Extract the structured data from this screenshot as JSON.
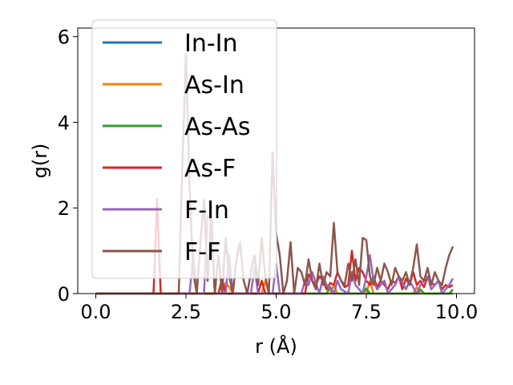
{
  "chart_data": {
    "type": "line",
    "xlabel": "r (Å)",
    "ylabel": "g(r)",
    "xlim": [
      -0.5,
      10.5
    ],
    "ylim": [
      0,
      6.2
    ],
    "x_ticks": [
      0.0,
      2.5,
      5.0,
      7.5,
      10.0
    ],
    "x_tick_labels": [
      "0.0",
      "2.5",
      "5.0",
      "7.5",
      "10.0"
    ],
    "y_ticks": [
      0,
      2,
      4,
      6
    ],
    "y_tick_labels": [
      "0",
      "2",
      "4",
      "6"
    ],
    "grid": false,
    "legend": "top-left",
    "series": [
      {
        "name": "In-In",
        "color": "#1f77b4",
        "x": [
          0,
          1.0,
          2.0,
          3.0,
          4.0,
          5.0,
          6.0,
          7.0,
          8.0,
          9.0,
          9.9
        ],
        "y": [
          0,
          0,
          0,
          0,
          0,
          0,
          0,
          0,
          0,
          0,
          0
        ]
      },
      {
        "name": "As-In",
        "color": "#ff7f0e",
        "x": [
          0,
          3.5,
          3.6,
          3.7,
          3.8,
          4.6,
          4.7,
          4.8,
          6.5,
          6.6,
          6.7,
          7.5,
          7.6,
          7.7,
          8.8,
          8.9,
          9.0,
          9.9
        ],
        "y": [
          0,
          0,
          0.25,
          0.15,
          0,
          0,
          0.3,
          0,
          0,
          0.2,
          0,
          0,
          0.3,
          0,
          0,
          0.15,
          0,
          0
        ]
      },
      {
        "name": "As-As",
        "color": "#2ca02c",
        "x": [
          0,
          6.4,
          6.5,
          6.6,
          7.4,
          7.5,
          7.6,
          8.9,
          9.0,
          9.1,
          9.8,
          9.9
        ],
        "y": [
          0,
          0,
          0.15,
          0,
          0,
          0.12,
          0,
          0,
          0.1,
          0,
          0,
          0.1
        ]
      },
      {
        "name": "As-F",
        "color": "#d62728",
        "x": [
          0,
          1.6,
          1.7,
          1.8,
          3.4,
          3.5,
          3.6,
          4.5,
          4.6,
          4.7,
          5.8,
          5.9,
          6.0,
          6.1,
          6.2,
          6.3,
          6.4,
          6.5,
          6.6,
          6.7,
          6.8,
          6.9,
          7.0,
          7.1,
          7.2,
          7.3,
          7.4,
          7.5,
          7.6,
          7.7,
          7.8,
          7.9,
          8.0,
          8.1,
          8.2,
          8.3,
          8.4,
          8.5,
          8.6,
          8.7,
          8.8,
          8.9,
          9.0,
          9.1,
          9.2,
          9.3,
          9.4,
          9.5,
          9.6,
          9.7,
          9.8,
          9.9
        ],
        "y": [
          0,
          0,
          2.2,
          0,
          0,
          0.35,
          0,
          0,
          0.3,
          0,
          0,
          0.45,
          0.3,
          0.2,
          0.4,
          0.3,
          0.1,
          0.25,
          0.2,
          0.5,
          0.3,
          0.15,
          0.2,
          1.0,
          0.3,
          0.6,
          0.5,
          0.3,
          0.2,
          0.4,
          0.15,
          0.3,
          0.2,
          0.1,
          0.3,
          0.25,
          0.4,
          0.1,
          0.35,
          0.2,
          0.5,
          0.2,
          0.3,
          0.15,
          0.4,
          0.25,
          0.2,
          0.3,
          0.1,
          0.2,
          0.15,
          0.2
        ]
      },
      {
        "name": "F-In",
        "color": "#9467bd",
        "x": [
          0,
          2.6,
          2.7,
          2.8,
          3.0,
          3.1,
          3.2,
          3.3,
          3.6,
          3.7,
          3.8,
          4.3,
          4.4,
          4.5,
          4.9,
          5.0,
          5.1,
          5.7,
          5.8,
          5.9,
          6.0,
          6.2,
          6.3,
          6.4,
          6.6,
          6.7,
          6.8,
          7.0,
          7.1,
          7.2,
          7.4,
          7.5,
          7.6,
          7.7,
          7.8,
          8.0,
          8.1,
          8.3,
          8.4,
          8.6,
          8.7,
          8.9,
          9.0,
          9.2,
          9.3,
          9.5,
          9.6,
          9.8,
          9.9
        ],
        "y": [
          0,
          0,
          0.9,
          0,
          0,
          1.8,
          1.7,
          0,
          0,
          0.9,
          0,
          0,
          0.6,
          0,
          0,
          0.7,
          0,
          0,
          0.3,
          0.2,
          0.5,
          0,
          0.4,
          0.2,
          0,
          0.3,
          0.1,
          0,
          0.5,
          0.2,
          0,
          0.4,
          0.9,
          0.3,
          0.1,
          0.3,
          0,
          0.2,
          0.4,
          0.1,
          0.3,
          0,
          0.2,
          0.4,
          0.1,
          0.3,
          0,
          0.2,
          0.35
        ]
      },
      {
        "name": "F-F",
        "color": "#8c564b",
        "x": [
          0,
          2.3,
          2.4,
          2.5,
          2.6,
          2.7,
          2.8,
          2.9,
          3.0,
          3.1,
          3.2,
          3.3,
          3.4,
          3.5,
          3.6,
          3.7,
          3.8,
          3.9,
          4.0,
          4.1,
          4.2,
          4.3,
          4.4,
          4.5,
          4.6,
          4.7,
          4.8,
          4.9,
          5.0,
          5.1,
          5.2,
          5.3,
          5.4,
          5.5,
          5.6,
          5.7,
          5.8,
          5.9,
          6.0,
          6.1,
          6.2,
          6.3,
          6.4,
          6.5,
          6.6,
          6.7,
          6.8,
          6.9,
          7.0,
          7.1,
          7.2,
          7.3,
          7.4,
          7.5,
          7.6,
          7.7,
          7.8,
          7.9,
          8.0,
          8.1,
          8.2,
          8.3,
          8.4,
          8.5,
          8.6,
          8.7,
          8.8,
          8.9,
          9.0,
          9.1,
          9.2,
          9.3,
          9.4,
          9.5,
          9.6,
          9.7,
          9.8,
          9.9
        ],
        "y": [
          0,
          0,
          3.0,
          5.6,
          2.5,
          0.5,
          0,
          1.2,
          2.2,
          0.3,
          1.8,
          0,
          0.9,
          0,
          1.3,
          0.4,
          0,
          0.8,
          1.2,
          0.3,
          0,
          0.5,
          0.9,
          0.2,
          1.3,
          0.4,
          0,
          3.3,
          1.4,
          0.9,
          0,
          0.3,
          1.2,
          0,
          0.6,
          0.5,
          0.2,
          0.8,
          0.3,
          0.1,
          0.7,
          0.2,
          0.5,
          0.4,
          1.65,
          0.5,
          0.3,
          0.2,
          0.7,
          0.3,
          0.8,
          0.2,
          1.3,
          1.25,
          0.4,
          0.2,
          0.6,
          0.3,
          0.7,
          0.5,
          0.2,
          0.6,
          0.4,
          0.3,
          0.5,
          0.2,
          0.6,
          1.15,
          0.4,
          0.3,
          0.6,
          0.2,
          0.5,
          0.3,
          0.2,
          0.6,
          0.9,
          1.1
        ]
      }
    ]
  }
}
